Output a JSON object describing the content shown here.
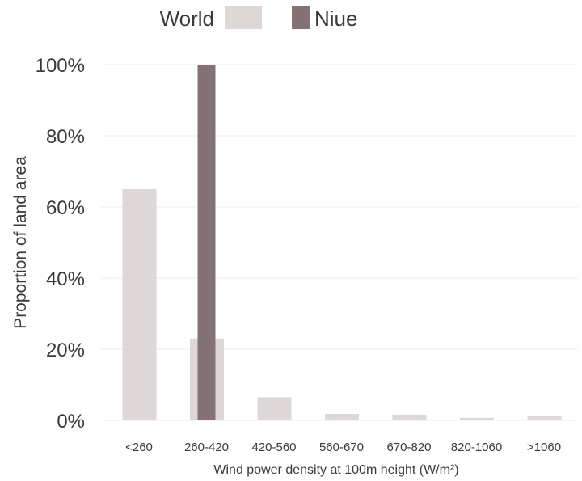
{
  "chart_data": {
    "type": "bar",
    "categories": [
      "<260",
      "260-420",
      "420-560",
      "560-670",
      "670-820",
      "820-1060",
      ">1060"
    ],
    "series": [
      {
        "name": "World",
        "color": "#ddd7d8",
        "values": [
          65,
          23,
          6.5,
          1.8,
          1.6,
          0.7,
          1.3
        ]
      },
      {
        "name": "Niue",
        "color": "#857275",
        "values": [
          0,
          100,
          0,
          0,
          0,
          0,
          0
        ]
      }
    ],
    "xlabel": "Wind power density at 100m height (W/m²)",
    "ylabel": "Proportion of land area",
    "ylim": [
      0,
      100
    ],
    "yticks": [
      0,
      20,
      40,
      60,
      80,
      100
    ],
    "ytick_suffix": "%",
    "grid": true,
    "legend_position": "top"
  }
}
